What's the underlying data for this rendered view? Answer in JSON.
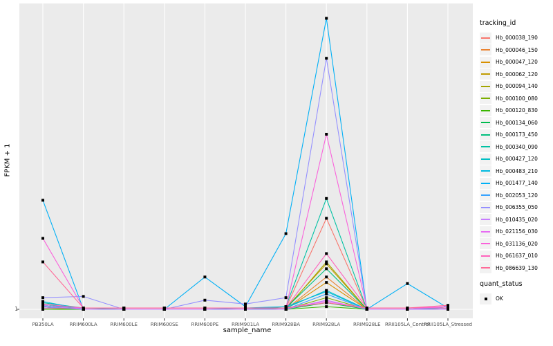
{
  "figure": {
    "background": "#FFFFFF",
    "panel_background": "#EBEBEB",
    "grid_color": "#FFFFFF",
    "tick_color": "#333333",
    "tick_label_color": "#4D4D4D"
  },
  "y_axis": {
    "title": "FPKM + 1",
    "tick_labels": [
      "1"
    ]
  },
  "x_axis": {
    "title": "sample_name"
  },
  "legend": {
    "tracking_title": "tracking_id",
    "quant_title": "quant_status",
    "quant_items": [
      {
        "label": "OK",
        "shape": "filled-square",
        "color": "#000000"
      }
    ]
  },
  "chart_data": {
    "type": "line",
    "title": "",
    "xlabel": "sample_name",
    "ylabel": "FPKM + 1",
    "yscale": "log10",
    "ylim": [
      1,
      9.6
    ],
    "ytick_labels": [
      "1"
    ],
    "grid": "vertical-major-plus-y1",
    "legend_position": "right",
    "point_shape": "filled-square-black",
    "categories": [
      "PB350LA",
      "RRIM600LA",
      "RRIM600LE",
      "RRIM600SE",
      "RRIM600PE",
      "RRIM901LA",
      "RRIM928BA",
      "RRIM928LA",
      "RRIM928LE",
      "RRII105LA_Control",
      "RRII105LA_Stressed"
    ],
    "series": [
      {
        "name": "Hb_000038_190",
        "color": "#F8766D",
        "values": [
          1.03,
          1,
          1,
          1,
          1,
          1,
          1.01,
          1.96,
          1,
          1,
          1.01
        ]
      },
      {
        "name": "Hb_000046_150",
        "color": "#EA8331",
        "values": [
          1.02,
          1,
          1,
          1,
          1,
          1,
          1,
          1.27,
          1,
          1,
          1
        ]
      },
      {
        "name": "Hb_000047_120",
        "color": "#D89000",
        "values": [
          1.01,
          1,
          1,
          1,
          1,
          1,
          1,
          1.22,
          1,
          1,
          1.01
        ]
      },
      {
        "name": "Hb_000062_120",
        "color": "#C09B00",
        "values": [
          1.04,
          1,
          1,
          1,
          1,
          1,
          1.01,
          1.4,
          1,
          1,
          1
        ]
      },
      {
        "name": "Hb_000094_140",
        "color": "#A3A500",
        "values": [
          1.02,
          1,
          1,
          1,
          1,
          1,
          1,
          1.42,
          1,
          1,
          1.02
        ]
      },
      {
        "name": "Hb_000100_080",
        "color": "#7CAE00",
        "values": [
          1.01,
          1,
          1,
          1,
          1,
          1,
          1,
          1.09,
          1,
          1,
          1
        ]
      },
      {
        "name": "Hb_000120_830",
        "color": "#39B600",
        "values": [
          1,
          1,
          1,
          1,
          1,
          1,
          1,
          1.02,
          1,
          1,
          1
        ]
      },
      {
        "name": "Hb_000134_060",
        "color": "#00BB4E",
        "values": [
          1.02,
          1,
          1,
          1,
          1,
          1,
          1,
          1.05,
          1,
          1,
          1.01
        ]
      },
      {
        "name": "Hb_000173_450",
        "color": "#00BF7D",
        "values": [
          1.03,
          1,
          1,
          1,
          1,
          1,
          1.01,
          1.35,
          1,
          1,
          1
        ]
      },
      {
        "name": "Hb_000340_090",
        "color": "#00C1A3",
        "values": [
          1.05,
          1.01,
          1,
          1,
          1,
          1,
          1.02,
          2.27,
          1,
          1,
          1.02
        ]
      },
      {
        "name": "Hb_000427_120",
        "color": "#00BFC4",
        "values": [
          1.04,
          1,
          1,
          1,
          1,
          1,
          1.01,
          1.15,
          1,
          1,
          1
        ]
      },
      {
        "name": "Hb_000483_210",
        "color": "#00BAE0",
        "values": [
          1.06,
          1,
          1,
          1,
          1,
          1.01,
          1.02,
          1.14,
          1,
          1,
          1.01
        ]
      },
      {
        "name": "Hb_001477_140",
        "color": "#00B0F6",
        "values": [
          2.24,
          1,
          1,
          1,
          1.27,
          1.02,
          1.75,
          8.6,
          1,
          1.21,
          1.01
        ]
      },
      {
        "name": "Hb_002053_120",
        "color": "#35A2FF",
        "values": [
          1.02,
          1,
          1,
          1,
          1,
          1,
          1,
          1.12,
          1,
          1,
          1
        ]
      },
      {
        "name": "Hb_006355_050",
        "color": "#9590FF",
        "values": [
          1.09,
          1.1,
          1,
          1,
          1.07,
          1.04,
          1.09,
          6.4,
          1,
          1,
          1.02
        ]
      },
      {
        "name": "Hb_010435_020",
        "color": "#C77CFF",
        "values": [
          1.03,
          1,
          1,
          1,
          1,
          1,
          1,
          1.07,
          1,
          1,
          1
        ]
      },
      {
        "name": "Hb_021156_030",
        "color": "#E76BF3",
        "values": [
          1.01,
          1.01,
          1.01,
          1.01,
          1.01,
          1.01,
          1.01,
          1.06,
          1.01,
          1.01,
          1.01
        ]
      },
      {
        "name": "Hb_031136_020",
        "color": "#FA62DB",
        "values": [
          1.69,
          1.01,
          1.01,
          1.01,
          1.01,
          1.01,
          1.01,
          3.65,
          1.01,
          1.01,
          1.02
        ]
      },
      {
        "name": "Hb_061637_010",
        "color": "#FF62BC",
        "values": [
          1.04,
          1.01,
          1.01,
          1.01,
          1.01,
          1.01,
          1.01,
          1.51,
          1.01,
          1.01,
          1.01
        ]
      },
      {
        "name": "Hb_086639_130",
        "color": "#FF6A98",
        "values": [
          1.42,
          1.01,
          1.01,
          1.01,
          1.01,
          1.01,
          1.01,
          1.05,
          1.01,
          1.01,
          1.03
        ]
      }
    ],
    "quant_status": {
      "label": "OK",
      "shape": "filled-square",
      "color": "#000000"
    }
  }
}
